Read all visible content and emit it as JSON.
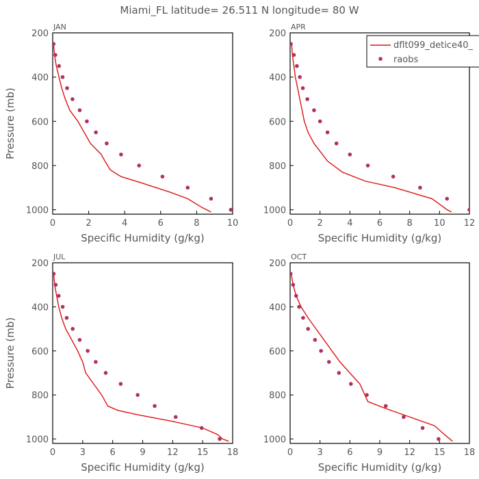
{
  "title": "Miami_FL   latitude= 26.511 N longitude= 80 W",
  "colors": {
    "model": "#dd1111",
    "obs": "#b03060",
    "axis": "#000000",
    "text": "#555555"
  },
  "legend": {
    "model": "dflt099_detice40_",
    "obs": "raobs",
    "placement": "top-right of APR panel"
  },
  "chart_data": [
    {
      "type": "line",
      "panel": "JAN",
      "xlabel": "Specific Humidity (g/kg)",
      "ylabel": "Pressure (mb)",
      "xlim": [
        0,
        10
      ],
      "ylim": [
        1020,
        200
      ],
      "xticks": [
        0,
        2,
        4,
        6,
        8,
        10
      ],
      "yticks": [
        200,
        400,
        600,
        800,
        1000
      ],
      "series": [
        {
          "name": "dflt099_detice40_",
          "kind": "line",
          "points": [
            [
              0.05,
              250
            ],
            [
              0.1,
              300
            ],
            [
              0.2,
              350
            ],
            [
              0.35,
              400
            ],
            [
              0.5,
              450
            ],
            [
              0.7,
              500
            ],
            [
              0.95,
              550
            ],
            [
              1.4,
              600
            ],
            [
              2.1,
              700
            ],
            [
              2.7,
              750
            ],
            [
              2.9,
              780
            ],
            [
              3.2,
              820
            ],
            [
              3.8,
              850
            ],
            [
              5.0,
              880
            ],
            [
              6.5,
              920
            ],
            [
              7.5,
              950
            ],
            [
              8.3,
              990
            ],
            [
              8.8,
              1010
            ]
          ]
        },
        {
          "name": "raobs",
          "kind": "scatter",
          "points": [
            [
              0.05,
              250
            ],
            [
              0.15,
              300
            ],
            [
              0.35,
              350
            ],
            [
              0.55,
              400
            ],
            [
              0.8,
              450
            ],
            [
              1.1,
              500
            ],
            [
              1.5,
              550
            ],
            [
              1.9,
              600
            ],
            [
              2.4,
              650
            ],
            [
              3.0,
              700
            ],
            [
              3.8,
              750
            ],
            [
              4.8,
              800
            ],
            [
              6.1,
              850
            ],
            [
              7.5,
              900
            ],
            [
              8.8,
              950
            ],
            [
              9.9,
              1000
            ]
          ]
        }
      ]
    },
    {
      "type": "line",
      "panel": "APR",
      "xlabel": "Specific Humidity (g/kg)",
      "ylabel": "",
      "xlim": [
        0,
        12
      ],
      "ylim": [
        1020,
        200
      ],
      "xticks": [
        0,
        2,
        4,
        6,
        8,
        10,
        12
      ],
      "yticks": [
        200,
        400,
        600,
        800,
        1000
      ],
      "series": [
        {
          "name": "dflt099_detice40_",
          "kind": "line",
          "points": [
            [
              0.1,
              250
            ],
            [
              0.15,
              300
            ],
            [
              0.25,
              350
            ],
            [
              0.35,
              400
            ],
            [
              0.5,
              450
            ],
            [
              0.65,
              500
            ],
            [
              0.8,
              550
            ],
            [
              0.95,
              600
            ],
            [
              1.2,
              650
            ],
            [
              1.6,
              700
            ],
            [
              2.5,
              780
            ],
            [
              3.5,
              830
            ],
            [
              5.0,
              870
            ],
            [
              7.0,
              900
            ],
            [
              9.5,
              950
            ],
            [
              10.5,
              1000
            ],
            [
              10.8,
              1010
            ]
          ]
        },
        {
          "name": "raobs",
          "kind": "scatter",
          "points": [
            [
              0.05,
              250
            ],
            [
              0.25,
              300
            ],
            [
              0.45,
              350
            ],
            [
              0.65,
              400
            ],
            [
              0.85,
              450
            ],
            [
              1.15,
              500
            ],
            [
              1.6,
              550
            ],
            [
              2.0,
              600
            ],
            [
              2.5,
              650
            ],
            [
              3.1,
              700
            ],
            [
              4.0,
              750
            ],
            [
              5.2,
              800
            ],
            [
              6.9,
              850
            ],
            [
              8.7,
              900
            ],
            [
              10.5,
              950
            ],
            [
              12.0,
              1000
            ]
          ]
        }
      ]
    },
    {
      "type": "line",
      "panel": "JUL",
      "xlabel": "Specific Humidity (g/kg)",
      "ylabel": "Pressure (mb)",
      "xlim": [
        0,
        18
      ],
      "ylim": [
        1020,
        200
      ],
      "xticks": [
        0,
        3,
        6,
        9,
        12,
        15,
        18
      ],
      "yticks": [
        200,
        400,
        600,
        800,
        1000
      ],
      "series": [
        {
          "name": "dflt099_detice40_",
          "kind": "line",
          "points": [
            [
              0.1,
              250
            ],
            [
              0.2,
              300
            ],
            [
              0.4,
              350
            ],
            [
              0.6,
              400
            ],
            [
              0.9,
              450
            ],
            [
              1.3,
              500
            ],
            [
              1.9,
              550
            ],
            [
              2.5,
              600
            ],
            [
              3.0,
              650
            ],
            [
              3.3,
              700
            ],
            [
              4.1,
              750
            ],
            [
              4.9,
              800
            ],
            [
              5.5,
              850
            ],
            [
              6.5,
              870
            ],
            [
              8.5,
              890
            ],
            [
              12,
              920
            ],
            [
              15,
              950
            ],
            [
              16.5,
              980
            ],
            [
              17.0,
              1000
            ],
            [
              17.6,
              1010
            ]
          ]
        },
        {
          "name": "raobs",
          "kind": "scatter",
          "points": [
            [
              0.1,
              250
            ],
            [
              0.3,
              300
            ],
            [
              0.6,
              350
            ],
            [
              1.0,
              400
            ],
            [
              1.4,
              450
            ],
            [
              2.0,
              500
            ],
            [
              2.7,
              550
            ],
            [
              3.5,
              600
            ],
            [
              4.3,
              650
            ],
            [
              5.3,
              700
            ],
            [
              6.8,
              750
            ],
            [
              8.5,
              800
            ],
            [
              10.2,
              850
            ],
            [
              12.3,
              900
            ],
            [
              14.9,
              950
            ],
            [
              16.7,
              1000
            ]
          ]
        }
      ]
    },
    {
      "type": "line",
      "panel": "OCT",
      "xlabel": "Specific Humidity (g/kg)",
      "ylabel": "",
      "xlim": [
        0,
        18
      ],
      "ylim": [
        1020,
        200
      ],
      "xticks": [
        0,
        3,
        6,
        9,
        12,
        15,
        18
      ],
      "yticks": [
        200,
        400,
        600,
        800,
        1000
      ],
      "series": [
        {
          "name": "dflt099_detice40_",
          "kind": "line",
          "points": [
            [
              0.1,
              250
            ],
            [
              0.3,
              300
            ],
            [
              0.6,
              350
            ],
            [
              1.1,
              400
            ],
            [
              1.8,
              450
            ],
            [
              2.6,
              500
            ],
            [
              3.4,
              550
            ],
            [
              4.2,
              600
            ],
            [
              5.0,
              650
            ],
            [
              6.0,
              700
            ],
            [
              7.0,
              750
            ],
            [
              7.5,
              800
            ],
            [
              7.8,
              830
            ],
            [
              9.5,
              860
            ],
            [
              12.0,
              900
            ],
            [
              14.5,
              940
            ],
            [
              15.5,
              980
            ],
            [
              16.3,
              1010
            ]
          ]
        },
        {
          "name": "raobs",
          "kind": "scatter",
          "points": [
            [
              0.05,
              250
            ],
            [
              0.3,
              300
            ],
            [
              0.6,
              350
            ],
            [
              0.9,
              400
            ],
            [
              1.3,
              450
            ],
            [
              1.8,
              500
            ],
            [
              2.5,
              550
            ],
            [
              3.1,
              600
            ],
            [
              3.9,
              650
            ],
            [
              4.9,
              700
            ],
            [
              6.1,
              750
            ],
            [
              7.7,
              800
            ],
            [
              9.6,
              850
            ],
            [
              11.4,
              900
            ],
            [
              13.3,
              950
            ],
            [
              14.9,
              1000
            ]
          ]
        }
      ]
    }
  ]
}
